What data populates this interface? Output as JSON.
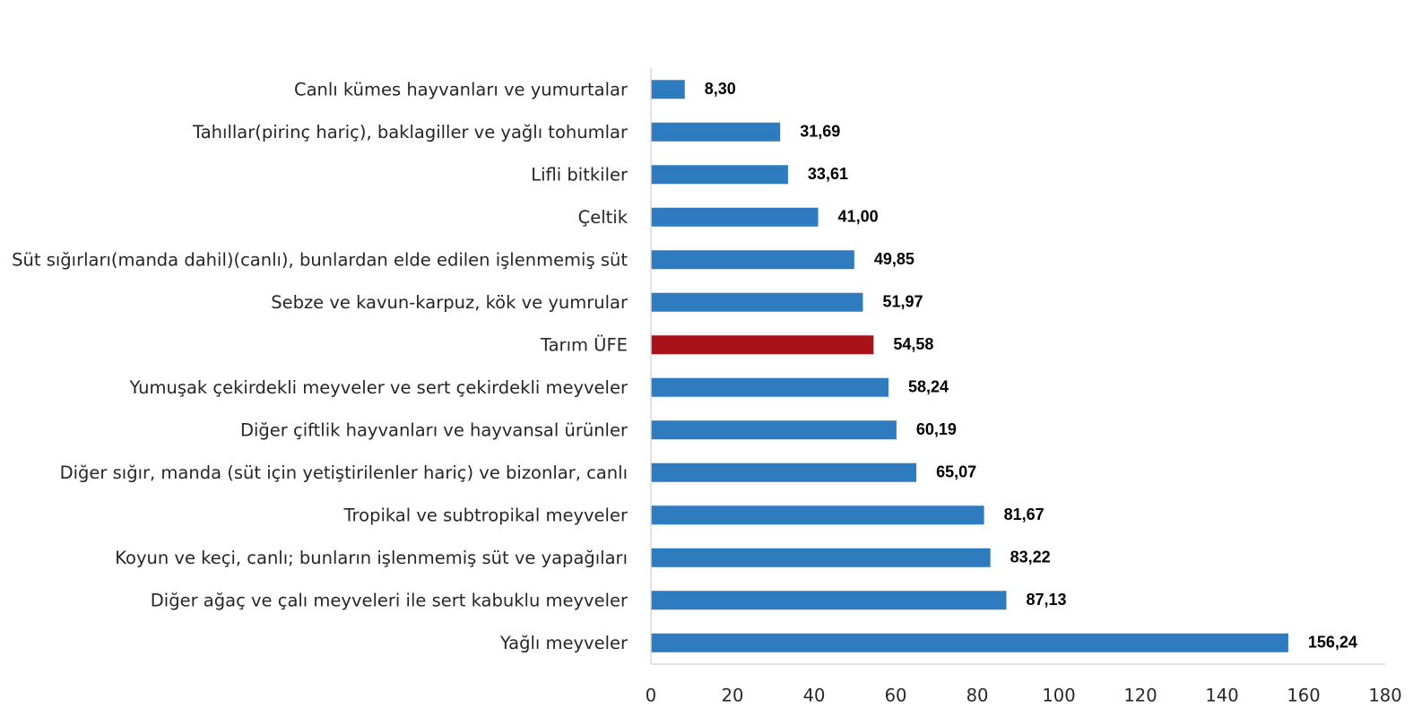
{
  "chart_data": {
    "type": "bar",
    "orientation": "horizontal",
    "title": "",
    "xlabel": "",
    "ylabel": "",
    "xlim": [
      0,
      180
    ],
    "ticks": [
      0,
      20,
      40,
      60,
      80,
      100,
      120,
      140,
      160,
      180
    ],
    "grid": false,
    "legend": "none",
    "categories": [
      "Canlı kümes hayvanları ve yumurtalar",
      "Tahıllar(pirinç hariç), baklagiller ve yağlı tohumlar",
      "Lifli bitkiler",
      "Çeltik",
      "Süt sığırları(manda dahil)(canlı), bunlardan elde edilen işlenmemiş süt",
      "Sebze ve kavun-karpuz, kök ve yumrular",
      "Tarım ÜFE",
      "Yumuşak çekirdekli meyveler ve sert çekirdekli meyveler",
      "Diğer çiftlik hayvanları ve hayvansal ürünler",
      "Diğer sığır, manda (süt için yetiştirilenler hariç) ve bizonlar, canlı",
      "Tropikal ve subtropikal meyveler",
      "Koyun ve keçi, canlı; bunların işlenmemiş süt ve yapağıları",
      "Diğer ağaç ve çalı meyveleri ile sert kabuklu meyveler",
      "Yağlı meyveler"
    ],
    "values": [
      8.3,
      31.69,
      33.61,
      41.0,
      49.85,
      51.97,
      54.58,
      58.24,
      60.19,
      65.07,
      81.67,
      83.22,
      87.13,
      156.24
    ],
    "value_labels": [
      "8,30",
      "31,69",
      "33,61",
      "41,00",
      "49,85",
      "51,97",
      "54,58",
      "58,24",
      "60,19",
      "65,07",
      "81,67",
      "83,22",
      "87,13",
      "156,24"
    ],
    "highlight_category": "Tarım ÜFE",
    "colors": {
      "bar": "#2e7bbf",
      "highlight": "#aa121a"
    }
  }
}
